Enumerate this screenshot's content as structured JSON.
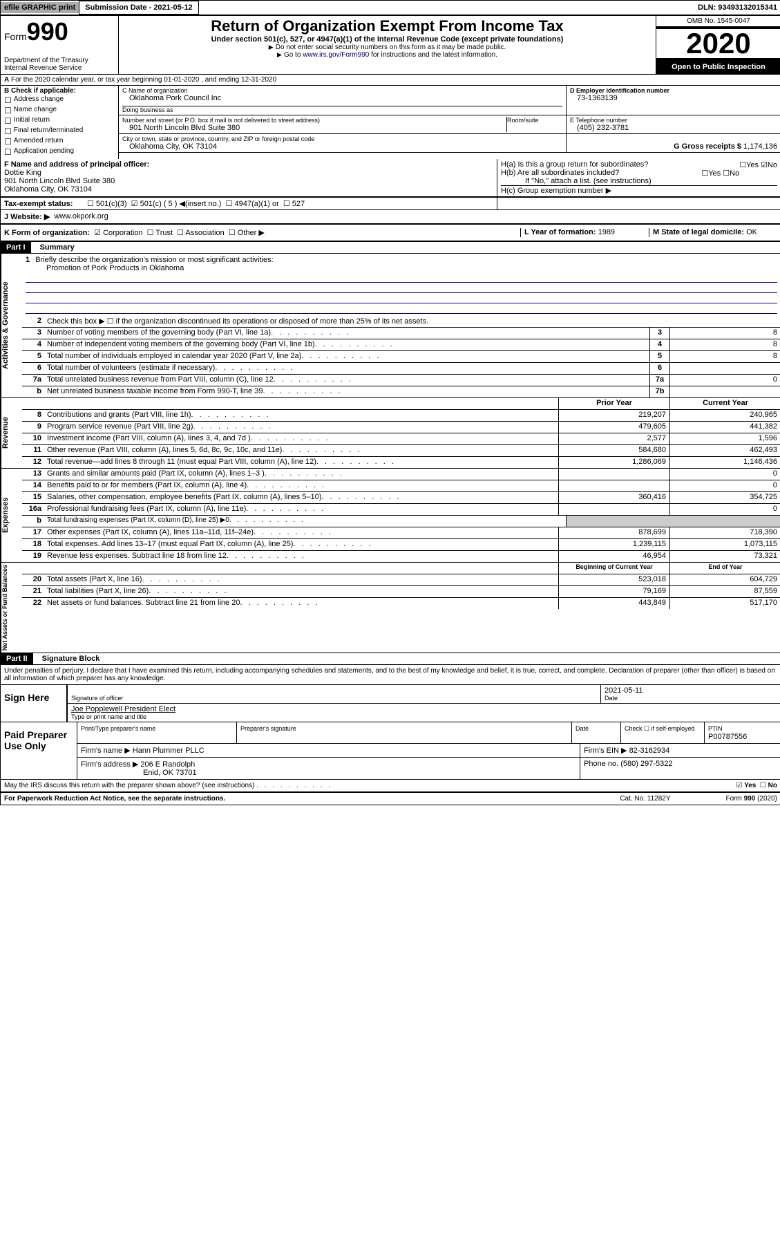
{
  "topbar": {
    "efile": "efile GRAPHIC print",
    "subdate_lbl": "Submission Date - 2021-05-12",
    "dln": "DLN: 93493132015341"
  },
  "header": {
    "form_word": "Form",
    "form_num": "990",
    "dept": "Department of the Treasury\nInternal Revenue Service",
    "title": "Return of Organization Exempt From Income Tax",
    "subtitle": "Under section 501(c), 527, or 4947(a)(1) of the Internal Revenue Code (except private foundations)",
    "warn": "Do not enter social security numbers on this form as it may be made public.",
    "goto": "Go to www.irs.gov/Form990 for instructions and the latest information.",
    "link": "www.irs.gov/Form990",
    "omb": "OMB No. 1545-0047",
    "year": "2020",
    "open": "Open to Public Inspection"
  },
  "a_line": "For the 2020 calendar year, or tax year beginning 01-01-2020    , and ending 12-31-2020",
  "b": {
    "hdr": "B Check if applicable:",
    "items": [
      "Address change",
      "Name change",
      "Initial return",
      "Final return/terminated",
      "Amended return",
      "Application pending"
    ]
  },
  "c": {
    "name_lbl": "C Name of organization",
    "name": "Oklahoma Pork Council Inc",
    "dba_lbl": "Doing business as",
    "dba": "",
    "addr_lbl": "Number and street (or P.O. box if mail is not delivered to street address)",
    "room_lbl": "Room/suite",
    "addr": "901 North Lincoln Blvd Suite 380",
    "city_lbl": "City or town, state or province, country, and ZIP or foreign postal code",
    "city": "Oklahoma City, OK  73104"
  },
  "d": {
    "lbl": "D Employer identification number",
    "val": "73-1363139"
  },
  "e": {
    "lbl": "E Telephone number",
    "val": "(405) 232-3781"
  },
  "g": {
    "lbl": "G Gross receipts $",
    "val": "1,174,136"
  },
  "f": {
    "lbl": "F  Name and address of principal officer:",
    "name": "Dottie King",
    "addr1": "901 North Lincoln Blvd Suite 380",
    "addr2": "Oklahoma City, OK  73104"
  },
  "h": {
    "a": "H(a)  Is this a group return for subordinates?",
    "b": "H(b)  Are all subordinates included?",
    "note": "If \"No,\" attach a list. (see instructions)",
    "c": "H(c)  Group exemption number ▶"
  },
  "i": {
    "lbl": "Tax-exempt status:",
    "opts": [
      "501(c)(3)",
      "501(c) ( 5 ) ◀(insert no.)",
      "4947(a)(1) or",
      "527"
    ]
  },
  "j": {
    "lbl": "J   Website: ▶",
    "val": "www.okpork.org"
  },
  "k": {
    "lbl": "K Form of organization:",
    "opts": [
      "Corporation",
      "Trust",
      "Association",
      "Other ▶"
    ]
  },
  "l": {
    "lbl": "L Year of formation:",
    "val": "1989"
  },
  "m": {
    "lbl": "M State of legal domicile:",
    "val": "OK"
  },
  "part1": {
    "num": "Part I",
    "title": "Summary"
  },
  "gov": {
    "label": "Activities & Governance",
    "l1": "Briefly describe the organization's mission or most significant activities:",
    "l1val": "Promotion of Pork Products in Oklahoma",
    "l2": "Check this box ▶ ☐  if the organization discontinued its operations or disposed of more than 25% of its net assets.",
    "l3": "Number of voting members of the governing body (Part VI, line 1a)",
    "l3v": "8",
    "l4": "Number of independent voting members of the governing body (Part VI, line 1b)",
    "l4v": "8",
    "l5": "Total number of individuals employed in calendar year 2020 (Part V, line 2a)",
    "l5v": "8",
    "l6": "Total number of volunteers (estimate if necessary)",
    "l6v": "",
    "l7a": "Total unrelated business revenue from Part VIII, column (C), line 12",
    "l7av": "0",
    "l7b": "Net unrelated business taxable income from Form 990-T, line 39",
    "l7bv": ""
  },
  "rev": {
    "label": "Revenue",
    "prior_hdr": "Prior Year",
    "curr_hdr": "Current Year",
    "rows": [
      {
        "n": "8",
        "t": "Contributions and grants (Part VIII, line 1h)",
        "p": "219,207",
        "c": "240,965"
      },
      {
        "n": "9",
        "t": "Program service revenue (Part VIII, line 2g)",
        "p": "479,605",
        "c": "441,382"
      },
      {
        "n": "10",
        "t": "Investment income (Part VIII, column (A), lines 3, 4, and 7d )",
        "p": "2,577",
        "c": "1,596"
      },
      {
        "n": "11",
        "t": "Other revenue (Part VIII, column (A), lines 5, 6d, 8c, 9c, 10c, and 11e)",
        "p": "584,680",
        "c": "462,493"
      },
      {
        "n": "12",
        "t": "Total revenue—add lines 8 through 11 (must equal Part VIII, column (A), line 12)",
        "p": "1,286,069",
        "c": "1,146,436"
      }
    ]
  },
  "exp": {
    "label": "Expenses",
    "rows": [
      {
        "n": "13",
        "t": "Grants and similar amounts paid (Part IX, column (A), lines 1–3 )",
        "p": "",
        "c": "0"
      },
      {
        "n": "14",
        "t": "Benefits paid to or for members (Part IX, column (A), line 4)",
        "p": "",
        "c": "0"
      },
      {
        "n": "15",
        "t": "Salaries, other compensation, employee benefits (Part IX, column (A), lines 5–10)",
        "p": "360,416",
        "c": "354,725"
      },
      {
        "n": "16a",
        "t": "Professional fundraising fees (Part IX, column (A), line 11e)",
        "p": "",
        "c": "0"
      },
      {
        "n": "b",
        "t": "Total fundraising expenses (Part IX, column (D), line 25) ▶0",
        "p": null,
        "c": null
      },
      {
        "n": "17",
        "t": "Other expenses (Part IX, column (A), lines 11a–11d, 11f–24e)",
        "p": "878,699",
        "c": "718,390"
      },
      {
        "n": "18",
        "t": "Total expenses. Add lines 13–17 (must equal Part IX, column (A), line 25)",
        "p": "1,239,115",
        "c": "1,073,115"
      },
      {
        "n": "19",
        "t": "Revenue less expenses. Subtract line 18 from line 12",
        "p": "46,954",
        "c": "73,321"
      }
    ]
  },
  "net": {
    "label": "Net Assets or Fund Balances",
    "beg_hdr": "Beginning of Current Year",
    "end_hdr": "End of Year",
    "rows": [
      {
        "n": "20",
        "t": "Total assets (Part X, line 16)",
        "p": "523,018",
        "c": "604,729"
      },
      {
        "n": "21",
        "t": "Total liabilities (Part X, line 26)",
        "p": "79,169",
        "c": "87,559"
      },
      {
        "n": "22",
        "t": "Net assets or fund balances. Subtract line 21 from line 20",
        "p": "443,849",
        "c": "517,170"
      }
    ]
  },
  "part2": {
    "num": "Part II",
    "title": "Signature Block"
  },
  "declare": "Under penalties of perjury, I declare that I have examined this return, including accompanying schedules and statements, and to the best of my knowledge and belief, it is true, correct, and complete. Declaration of preparer (other than officer) is based on all information of which preparer has any knowledge.",
  "sign": {
    "lbl": "Sign Here",
    "sig_lbl": "Signature of officer",
    "date_lbl": "Date",
    "date": "2021-05-11",
    "name": "Joe Popplewell President Elect",
    "name_lbl": "Type or print name and title"
  },
  "paid": {
    "lbl": "Paid Preparer Use Only",
    "h1": "Print/Type preparer's name",
    "h2": "Preparer's signature",
    "h3": "Date",
    "h4": "Check ☐ if self-employed",
    "h5": "PTIN",
    "ptin": "P00787556",
    "firm_lbl": "Firm's name    ▶",
    "firm": "Hann Plummer PLLC",
    "ein_lbl": "Firm's EIN ▶",
    "ein": "82-3162934",
    "addr_lbl": "Firm's address ▶",
    "addr": "206 E Randolph",
    "addr2": "Enid, OK  73701",
    "phone_lbl": "Phone no.",
    "phone": "(580) 297-5322"
  },
  "discuss": "May the IRS discuss this return with the preparer shown above? (see instructions)",
  "footer": {
    "pra": "For Paperwork Reduction Act Notice, see the separate instructions.",
    "cat": "Cat. No. 11282Y",
    "form": "Form 990 (2020)"
  }
}
